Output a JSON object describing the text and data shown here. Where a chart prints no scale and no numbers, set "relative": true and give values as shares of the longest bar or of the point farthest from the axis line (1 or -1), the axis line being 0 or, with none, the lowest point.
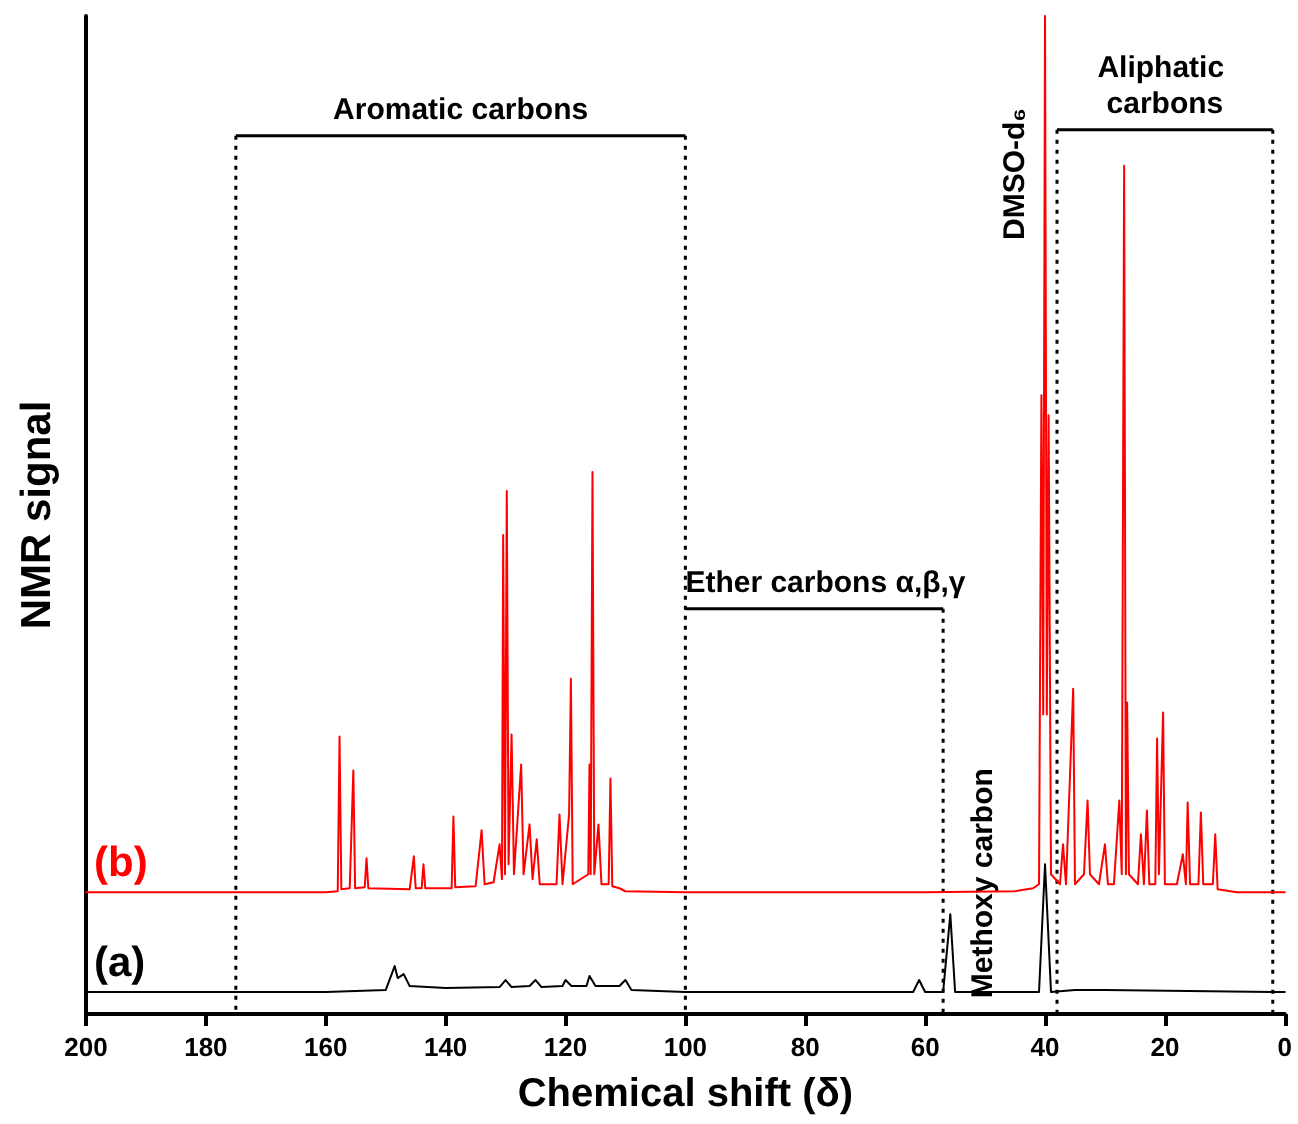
{
  "chart_data": {
    "type": "line",
    "relative": true,
    "xlabel": "Chemical shift (δ)",
    "ylabel": "NMR signal",
    "xlim": [
      200,
      0
    ],
    "xticks": [
      200,
      180,
      160,
      140,
      120,
      100,
      80,
      60,
      40,
      20,
      0
    ],
    "grid": false,
    "legend": false,
    "marker": "none",
    "line_style": "solid",
    "series": [
      {
        "name": "(b)",
        "color": "#ff0000",
        "x": [
          200,
          160,
          158,
          157.7,
          157.4,
          156,
          155.4,
          155.1,
          153.5,
          153.2,
          152.9,
          146,
          145.3,
          145,
          144,
          143.7,
          143.4,
          139,
          138.7,
          138.4,
          135,
          134,
          133.5,
          132,
          131,
          130.6,
          130.4,
          130.1,
          129.8,
          129.5,
          129,
          128.6,
          127.4,
          127,
          126,
          125.5,
          124.8,
          124.3,
          121.5,
          121,
          120.5,
          119.4,
          119.1,
          118.8,
          116.2,
          116,
          115.8,
          115.5,
          115.2,
          114.5,
          114,
          112.8,
          112.5,
          112.2,
          111,
          110,
          100,
          60,
          45,
          42,
          41,
          40.6,
          40.3,
          40,
          39.7,
          39.4,
          39,
          37.5,
          37,
          36.5,
          35.3,
          35,
          33.5,
          32.9,
          32.5,
          31,
          30,
          29.5,
          28.5,
          27.6,
          27.2,
          26.8,
          26.5,
          26.3,
          26,
          24.5,
          24,
          23.5,
          23,
          22.6,
          21.6,
          21.3,
          21,
          20.3,
          20,
          18,
          17,
          16.5,
          16.2,
          15.8,
          14.4,
          14,
          13.6,
          12,
          11.6,
          11.2,
          8,
          0
        ],
        "values": [
          0.122,
          0.122,
          0.123,
          0.278,
          0.125,
          0.126,
          0.244,
          0.126,
          0.127,
          0.156,
          0.126,
          0.125,
          0.158,
          0.126,
          0.126,
          0.15,
          0.126,
          0.126,
          0.198,
          0.127,
          0.128,
          0.184,
          0.13,
          0.132,
          0.17,
          0.135,
          0.48,
          0.14,
          0.524,
          0.15,
          0.28,
          0.14,
          0.25,
          0.14,
          0.19,
          0.135,
          0.175,
          0.13,
          0.13,
          0.2,
          0.13,
          0.2,
          0.336,
          0.13,
          0.14,
          0.25,
          0.14,
          0.543,
          0.14,
          0.19,
          0.13,
          0.13,
          0.236,
          0.128,
          0.126,
          0.123,
          0.122,
          0.122,
          0.123,
          0.126,
          0.13,
          0.62,
          0.3,
          1,
          0.3,
          0.6,
          0.14,
          0.13,
          0.17,
          0.13,
          0.326,
          0.13,
          0.14,
          0.214,
          0.14,
          0.13,
          0.17,
          0.13,
          0.13,
          0.214,
          0.14,
          0.85,
          0.14,
          0.312,
          0.14,
          0.13,
          0.18,
          0.13,
          0.204,
          0.13,
          0.13,
          0.276,
          0.14,
          0.302,
          0.13,
          0.13,
          0.16,
          0.13,
          0.212,
          0.13,
          0.13,
          0.202,
          0.13,
          0.13,
          0.18,
          0.125,
          0.122,
          0.122
        ]
      },
      {
        "name": "(a)",
        "color": "#000000",
        "x": [
          200,
          160,
          150,
          148.5,
          148,
          147,
          146,
          140,
          131,
          130,
          129,
          126,
          125,
          124,
          120.5,
          120,
          119,
          116.5,
          116,
          115,
          111,
          110,
          109,
          100,
          62,
          61,
          60,
          57,
          55.8,
          55,
          41,
          40,
          39,
          35,
          30,
          0
        ],
        "values": [
          0.022,
          0.022,
          0.024,
          0.048,
          0.036,
          0.04,
          0.028,
          0.026,
          0.027,
          0.034,
          0.027,
          0.028,
          0.034,
          0.027,
          0.028,
          0.034,
          0.028,
          0.028,
          0.038,
          0.028,
          0.028,
          0.034,
          0.024,
          0.022,
          0.022,
          0.034,
          0.022,
          0.022,
          0.1,
          0.022,
          0.022,
          0.15,
          0.022,
          0.024,
          0.024,
          0.022
        ]
      }
    ],
    "ref_lines": [
      {
        "axis": "x",
        "value": 175,
        "line_style": "dotted"
      },
      {
        "axis": "x",
        "value": 100,
        "line_style": "dotted"
      },
      {
        "axis": "x",
        "value": 57,
        "line_style": "dotted"
      },
      {
        "axis": "x",
        "value": 38,
        "line_style": "dotted"
      },
      {
        "axis": "x",
        "value": 2,
        "line_style": "dotted"
      }
    ],
    "annotations": [
      "Aromatic carbons",
      "Ether carbons α,β,γ",
      "Aliphatic carbons",
      {
        "text": "Methoxy carbon",
        "x": 55.8,
        "y": 0.1
      },
      "DMSO-d₆"
    ]
  }
}
